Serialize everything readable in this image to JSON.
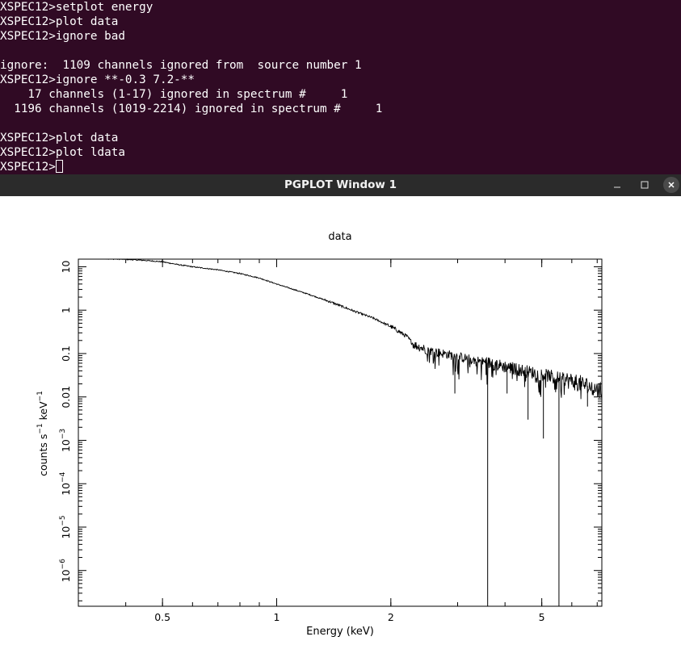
{
  "terminal": {
    "lines": [
      "XSPEC12>setplot energy",
      "XSPEC12>plot data",
      "XSPEC12>ignore bad",
      "",
      "ignore:  1109 channels ignored from  source number 1",
      "XSPEC12>ignore **-0.3 7.2-**",
      "    17 channels (1-17) ignored in spectrum #     1",
      "  1196 channels (1019-2214) ignored in spectrum #     1",
      "",
      "XSPEC12>plot data",
      "XSPEC12>plot ldata",
      "XSPEC12>"
    ]
  },
  "window": {
    "title": "PGPLOT Window 1",
    "minimize_glyph": "–",
    "maximize_glyph": "□",
    "close_glyph": "✕"
  },
  "colors": {
    "terminal_bg": "#300a24",
    "titlebar_bg": "#2b2b2b",
    "plot_ink": "#000000"
  },
  "chart_data": {
    "type": "line",
    "title": "data",
    "xlabel": "Energy (keV)",
    "ylabel": "counts s^-1 keV^-1",
    "ylabel_parts": {
      "base": "counts s",
      "exp1": "−1",
      "mid": " keV",
      "exp2": "−1"
    },
    "xscale": "log",
    "yscale": "log",
    "xlim": [
      0.3,
      7.2
    ],
    "ylim": [
      1.5e-07,
      15
    ],
    "x_ticks": [
      {
        "value": 0.5,
        "label": "0.5"
      },
      {
        "value": 1,
        "label": "1"
      },
      {
        "value": 2,
        "label": "2"
      },
      {
        "value": 5,
        "label": "5"
      }
    ],
    "y_ticks": [
      {
        "value": 10,
        "label": "10"
      },
      {
        "value": 1,
        "label": "1"
      },
      {
        "value": 0.1,
        "label": "0.1"
      },
      {
        "value": 0.01,
        "label": "0.01"
      },
      {
        "value": 0.001,
        "base": "10",
        "exp": "−3"
      },
      {
        "value": 0.0001,
        "base": "10",
        "exp": "−4"
      },
      {
        "value": 1e-05,
        "base": "10",
        "exp": "−5"
      },
      {
        "value": 1e-06,
        "base": "10",
        "exp": "−6"
      }
    ],
    "grid": false,
    "series": [
      {
        "x": [
          0.3,
          0.35,
          0.4,
          0.45,
          0.5,
          0.55,
          0.6,
          0.7,
          0.8,
          0.9,
          1.0,
          1.2,
          1.4,
          1.6,
          1.8,
          2.0,
          2.2,
          2.3,
          2.5,
          3.0,
          3.5,
          4.0,
          4.5,
          5.0,
          5.5,
          6.0,
          6.5,
          7.0,
          7.2
        ],
        "y": [
          15.5,
          15.3,
          14.8,
          14.0,
          13.0,
          11.2,
          10.0,
          8.5,
          7.0,
          5.5,
          4.0,
          2.4,
          1.5,
          0.95,
          0.65,
          0.42,
          0.25,
          0.16,
          0.12,
          0.085,
          0.065,
          0.05,
          0.04,
          0.033,
          0.028,
          0.023,
          0.019,
          0.015,
          0.013
        ]
      }
    ],
    "dropouts": [
      {
        "x": 2.95,
        "y": 0.012
      },
      {
        "x": 3.6,
        "y": 1.5e-07
      },
      {
        "x": 4.05,
        "y": 0.012
      },
      {
        "x": 4.6,
        "y": 0.003
      },
      {
        "x": 5.05,
        "y": 0.0011
      },
      {
        "x": 5.55,
        "y": 1.5e-07
      },
      {
        "x": 6.6,
        "y": 0.006
      }
    ]
  }
}
